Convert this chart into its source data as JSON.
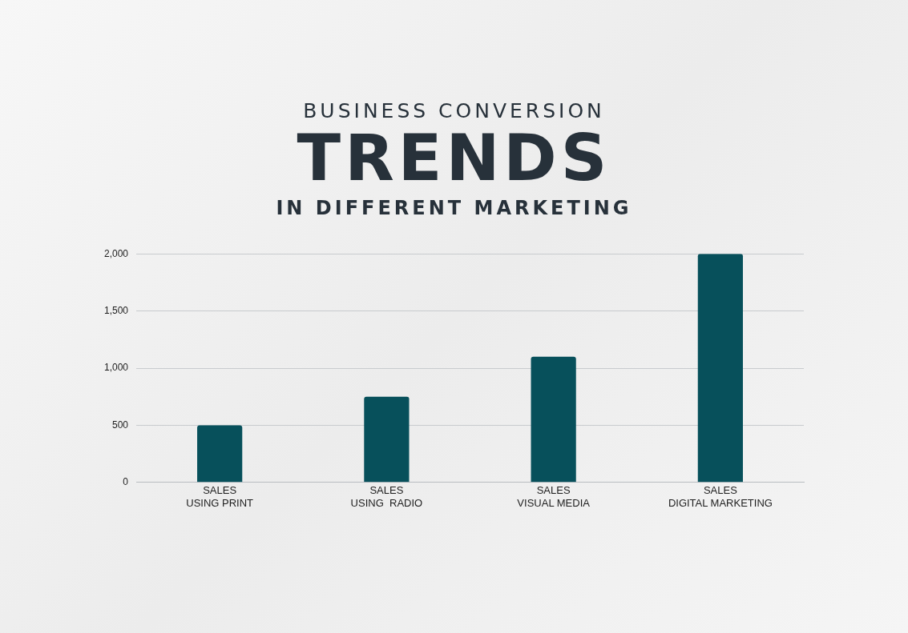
{
  "chart_data": {
    "type": "bar",
    "title": "BUSINESS CONVERSION\nTRENDS",
    "subtitle": "IN DIFFERENT MARKETING",
    "categories": [
      "SALES\nUSING PRINT",
      "SALES\nUSING  RADIO",
      "SALES\nVISUAL MEDIA",
      "SALES\nDIGITAL MARKETING"
    ],
    "values": [
      500,
      750,
      1100,
      2000
    ],
    "color": "#07505b",
    "ylim": [
      0,
      2000
    ],
    "yticks": [
      0,
      500,
      {
        "value": 1000,
        "label": "1,000"
      },
      {
        "value": 1500,
        "label": "1,500"
      },
      {
        "value": 2000,
        "label": "2,000"
      }
    ],
    "grid": "y",
    "legend": false
  }
}
